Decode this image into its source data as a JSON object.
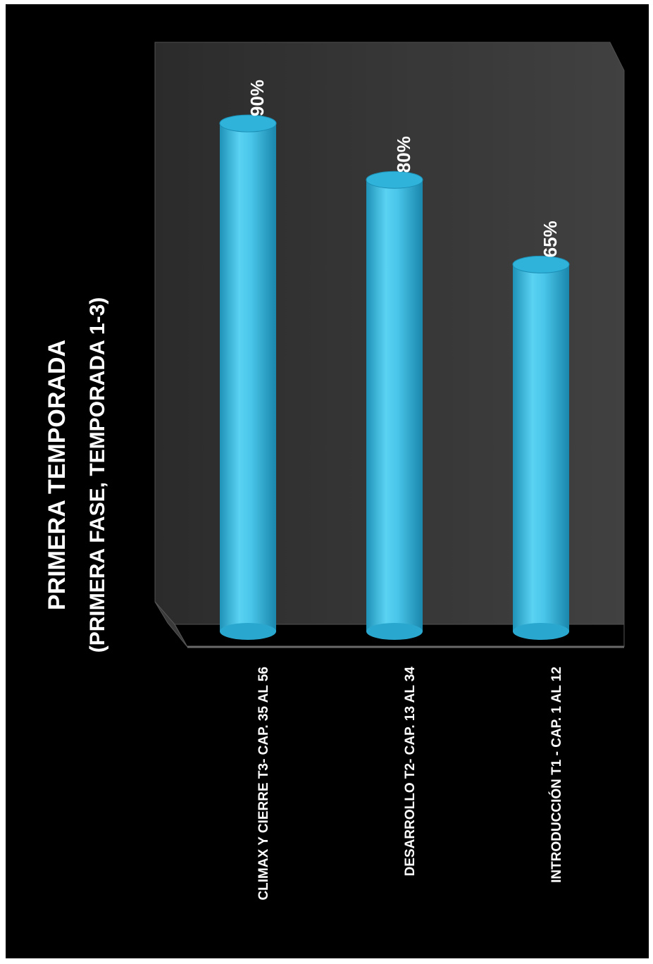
{
  "chart_data": {
    "type": "bar",
    "title": "PRIMERA TEMPORADA",
    "subtitle": "(PRIMERA FASE, TEMPORADA 1-3)",
    "categories": [
      "CLIMAX Y CIERRE T3- CAP. 35 AL 56",
      "DESARROLLO T2- CAP. 13 AL 34",
      "INTRODUCCIÓN T1 - CAP. 1 AL 12"
    ],
    "values": [
      90,
      80,
      65
    ],
    "value_labels": [
      "90%",
      "80%",
      "65%"
    ],
    "unit": "%",
    "ylim": [
      0,
      100
    ],
    "bar_style": "3d-cylinder",
    "bar_color": "#3cc2e6",
    "orientation": "rotated-90",
    "grid": false,
    "legend": "none"
  }
}
